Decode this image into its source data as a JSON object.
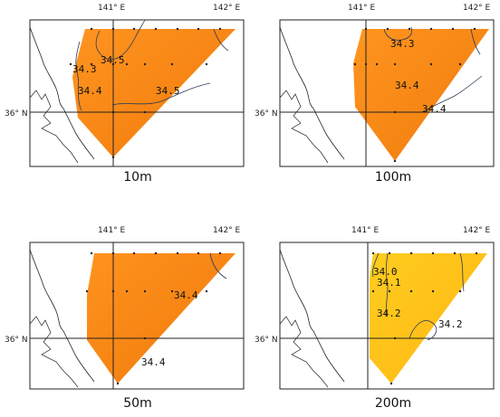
{
  "colors": {
    "orange": "#ff8c1a",
    "orange_mid": "#f07d0e",
    "yellow": "#ffc81a",
    "yellow_mid": "#ffb619",
    "coast": "#222222",
    "frame": "#222222",
    "contour": "#2a3b55"
  },
  "axis_labels": {
    "lon1": "141° E",
    "lon2": "142° E",
    "lat": "36° N"
  },
  "panels": [
    {
      "depth": "10m",
      "field": "orange",
      "isolines": [
        "34.3",
        "34.5",
        "34.4",
        "34.5"
      ]
    },
    {
      "depth": "100m",
      "field": "orange",
      "isolines": [
        "34.3",
        "34.4",
        "34.4"
      ]
    },
    {
      "depth": "50m",
      "field": "orange",
      "isolines": [
        "34.4",
        "34.4"
      ]
    },
    {
      "depth": "200m",
      "field": "yellow",
      "isolines": [
        "34.0",
        "34.1",
        "34.2",
        "34.2"
      ]
    }
  ]
}
